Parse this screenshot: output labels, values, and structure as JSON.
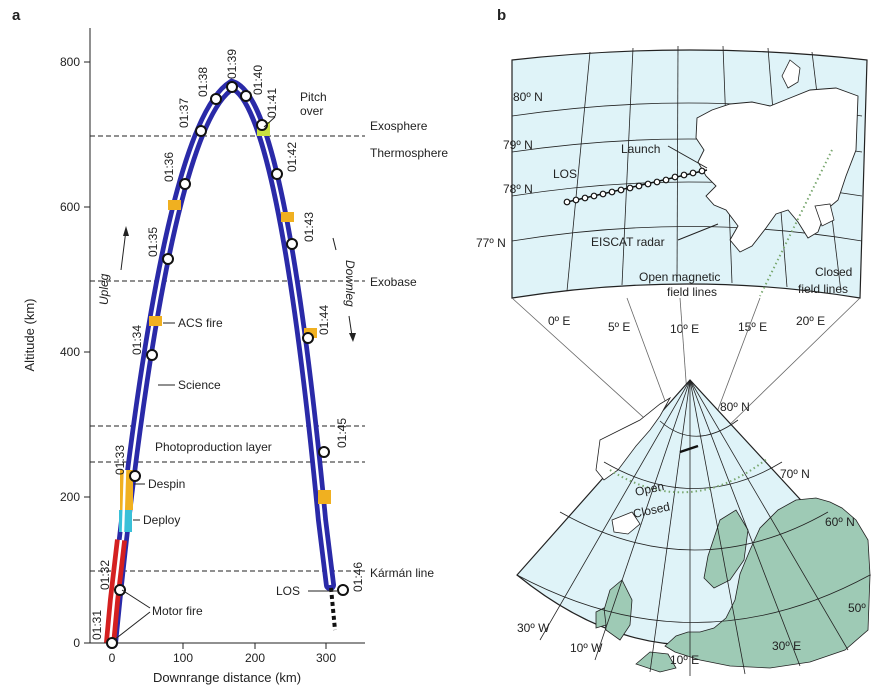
{
  "panel_a": {
    "label": "a",
    "ylabel": "Altitude (km)",
    "xlabel": "Downrange distance (km)",
    "yticks": [
      "0",
      "200",
      "400",
      "600",
      "800"
    ],
    "xticks": [
      "0",
      "100",
      "200",
      "300"
    ],
    "layers": {
      "exosphere": "Exosphere",
      "thermosphere": "Thermosphere",
      "exobase": "Exobase",
      "photoproduction": "Photoproduction layer",
      "karman": "Kármán line"
    },
    "annotations": {
      "pitch": "Pitch",
      "over": "over",
      "acs_fire": "ACS fire",
      "science": "Science",
      "despin": "Despin",
      "deploy": "Deploy",
      "motor_fire": "Motor fire",
      "los": "LOS",
      "upleg": "Upleg",
      "downleg": "Downleg"
    },
    "times": [
      "01:31",
      "01:32",
      "01:33",
      "01:34",
      "01:35",
      "01:36",
      "01:37",
      "01:38",
      "01:39",
      "01:40",
      "01:41",
      "01:42",
      "01:43",
      "01:44",
      "01:45",
      "01:46"
    ]
  },
  "panel_b": {
    "label": "b",
    "lat_labels": [
      "80º N",
      "79º N",
      "78º N",
      "77º N"
    ],
    "lon_labels": [
      "0º E",
      "5º E",
      "10º E",
      "15º E",
      "20º E"
    ],
    "annotations": {
      "launch": "Launch",
      "los": "LOS",
      "eiscat": "EISCAT radar",
      "open_line1": "Open magnetic",
      "open_line2": "field lines",
      "closed_line1": "Closed",
      "closed_line2": "field lines"
    },
    "lower_map": {
      "lat_labels": [
        "80º N",
        "70º N",
        "60º N",
        "50º"
      ],
      "lon_labels": [
        "30º W",
        "10º W",
        "10º E",
        "30º E"
      ],
      "open": "Open",
      "closed": "Closed"
    }
  },
  "colors": {
    "trajectory": "#2a2aa8",
    "motor": "#d42020",
    "despin": "#f0b020",
    "deploy": "#39c0d8",
    "sea": "#dff3f8",
    "land": "#9ecab5",
    "field_boundary": "#7aa870"
  }
}
